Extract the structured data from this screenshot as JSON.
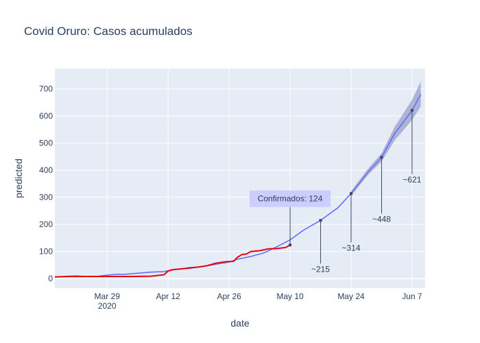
{
  "chart_data": {
    "type": "line",
    "title": "Covid Oruro: Casos acumulados",
    "xlabel": "date",
    "ylabel": "predicted",
    "xlim": [
      "2020-03-17",
      "2020-06-10"
    ],
    "ylim": [
      -35,
      775
    ],
    "grid": true,
    "x_ticks": [
      {
        "date": "2020-03-29",
        "label": "Mar 29",
        "sublabel": "2020"
      },
      {
        "date": "2020-04-12",
        "label": "Apr 12",
        "sublabel": ""
      },
      {
        "date": "2020-04-26",
        "label": "Apr 26",
        "sublabel": ""
      },
      {
        "date": "2020-05-10",
        "label": "May 10",
        "sublabel": ""
      },
      {
        "date": "2020-05-24",
        "label": "May 24",
        "sublabel": ""
      },
      {
        "date": "2020-06-07",
        "label": "Jun 7",
        "sublabel": ""
      }
    ],
    "y_ticks": [
      0,
      100,
      200,
      300,
      400,
      500,
      600,
      700
    ],
    "colors": {
      "predicted": "#636efa",
      "confirmed": "#e8000b",
      "band": "#9aa0c8",
      "grid": "#ffffff",
      "plot_bg": "#e5ecf6",
      "annotation_line": "#3d4a66",
      "tooltip_bg": "#ccccff"
    },
    "series": [
      {
        "key": "confirmed",
        "points": [
          [
            "2020-03-17",
            6
          ],
          [
            "2020-03-20",
            8
          ],
          [
            "2020-03-24",
            8
          ],
          [
            "2020-03-27",
            8
          ],
          [
            "2020-03-31",
            8
          ],
          [
            "2020-04-04",
            8
          ],
          [
            "2020-04-08",
            9
          ],
          [
            "2020-04-11",
            14
          ],
          [
            "2020-04-12",
            28
          ],
          [
            "2020-04-13",
            33
          ],
          [
            "2020-04-15",
            36
          ],
          [
            "2020-04-17",
            40
          ],
          [
            "2020-04-19",
            43
          ],
          [
            "2020-04-21",
            48
          ],
          [
            "2020-04-23",
            57
          ],
          [
            "2020-04-25",
            62
          ],
          [
            "2020-04-27",
            64
          ],
          [
            "2020-04-28",
            80
          ],
          [
            "2020-04-29",
            89
          ],
          [
            "2020-04-30",
            91
          ],
          [
            "2020-05-01",
            100
          ],
          [
            "2020-05-03",
            103
          ],
          [
            "2020-05-05",
            110
          ],
          [
            "2020-05-07",
            111
          ],
          [
            "2020-05-09",
            115
          ],
          [
            "2020-05-10",
            124
          ]
        ]
      },
      {
        "key": "predicted",
        "points": [
          [
            "2020-03-17",
            6
          ],
          [
            "2020-03-20",
            9
          ],
          [
            "2020-03-22",
            10
          ],
          [
            "2020-03-24",
            8
          ],
          [
            "2020-03-27",
            9
          ],
          [
            "2020-03-29",
            13
          ],
          [
            "2020-03-31",
            16
          ],
          [
            "2020-04-02",
            16
          ],
          [
            "2020-04-05",
            20
          ],
          [
            "2020-04-08",
            24
          ],
          [
            "2020-04-11",
            26
          ],
          [
            "2020-04-12",
            29
          ],
          [
            "2020-04-14",
            35
          ],
          [
            "2020-04-17",
            38
          ],
          [
            "2020-04-20",
            45
          ],
          [
            "2020-04-23",
            53
          ],
          [
            "2020-04-26",
            61
          ],
          [
            "2020-04-28",
            72
          ],
          [
            "2020-05-01",
            82
          ],
          [
            "2020-05-04",
            95
          ],
          [
            "2020-05-07",
            118
          ],
          [
            "2020-05-10",
            143
          ],
          [
            "2020-05-13",
            178
          ],
          [
            "2020-05-17",
            215
          ],
          [
            "2020-05-21",
            262
          ],
          [
            "2020-05-24",
            314
          ],
          [
            "2020-05-28",
            395
          ],
          [
            "2020-05-31",
            448
          ],
          [
            "2020-06-03",
            535
          ],
          [
            "2020-06-07",
            621
          ],
          [
            "2020-06-09",
            680
          ]
        ]
      }
    ],
    "band": [
      [
        "2020-05-24",
        305,
        323
      ],
      [
        "2020-05-28",
        385,
        408
      ],
      [
        "2020-05-31",
        432,
        462
      ],
      [
        "2020-06-03",
        510,
        560
      ],
      [
        "2020-06-07",
        585,
        660
      ],
      [
        "2020-06-09",
        635,
        728
      ]
    ],
    "annotations": [
      {
        "date": "2020-05-10",
        "value": 124,
        "text": "Confirmados: 124",
        "ay": 295,
        "style": "box"
      },
      {
        "date": "2020-05-17",
        "value": 215,
        "text": "~215",
        "ay": 35,
        "style": "plain"
      },
      {
        "date": "2020-05-24",
        "value": 314,
        "text": "~314",
        "ay": 113,
        "style": "plain"
      },
      {
        "date": "2020-05-31",
        "value": 448,
        "text": "~448",
        "ay": 220,
        "style": "plain"
      },
      {
        "date": "2020-06-07",
        "value": 621,
        "text": "~621",
        "ay": 365,
        "style": "plain"
      }
    ]
  }
}
